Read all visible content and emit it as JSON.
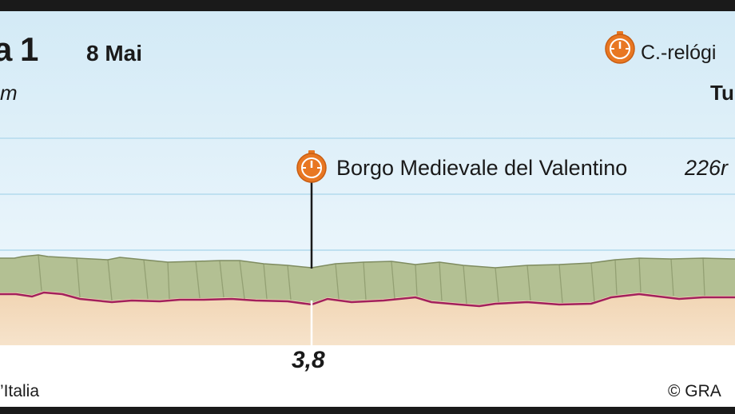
{
  "header": {
    "stage_title": "a 1",
    "date": "8 Mai",
    "distance_unit": "m",
    "stage_type": "C.-relógi",
    "finish_city": "Tu"
  },
  "checkpoint": {
    "name": "Borgo Medievale del Valentino",
    "altitude": "226r",
    "km": "3,8",
    "icon": "stopwatch-icon"
  },
  "footer": {
    "left": "’Italia",
    "right": "© GRA"
  },
  "colors": {
    "sky_top": "#d6ecf7",
    "sky_bottom": "#eef7fc",
    "terrain_top": "#b7c497",
    "terrain_shade": "#8f9d6f",
    "ground": "#efd3b1",
    "profile_line": "#a3205c",
    "accent": "#e87722"
  }
}
